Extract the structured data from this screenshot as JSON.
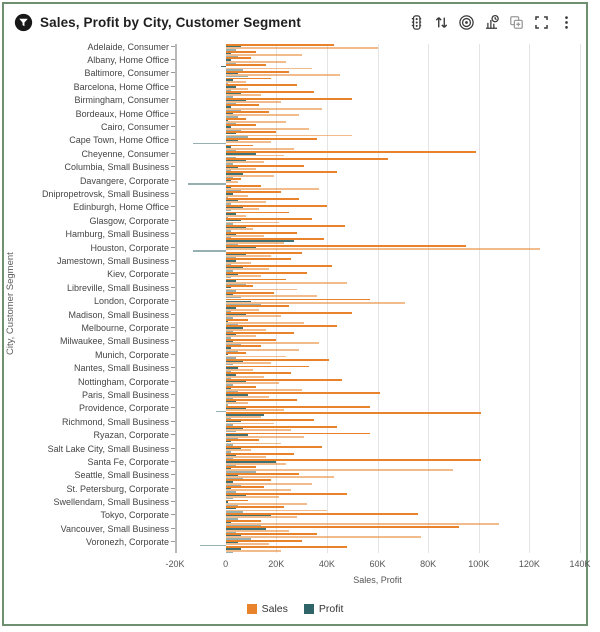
{
  "header": {
    "title": "Sales, Profit by City, Customer Segment",
    "logo_icon": "filter-badge-icon"
  },
  "toolbar": {
    "buttons": [
      {
        "name": "conditional-format",
        "icon": "traffic-light-icon"
      },
      {
        "name": "sort",
        "icon": "sort-arrows-icon"
      },
      {
        "name": "drill",
        "icon": "target-icon"
      },
      {
        "name": "insights",
        "icon": "chart-clock-icon"
      },
      {
        "name": "duplicate",
        "icon": "duplicate-plus-icon"
      },
      {
        "name": "maximize",
        "icon": "expand-icon"
      },
      {
        "name": "more-options",
        "icon": "kebab-menu-icon"
      }
    ]
  },
  "colors": {
    "sales": "#E8832C",
    "profit": "#2F6468",
    "border_green": "#6E9070",
    "grid": "#E4E4E4",
    "axis": "#B9B9B9",
    "text": "#454545"
  },
  "chart_data": {
    "type": "bar",
    "orientation": "horizontal",
    "title": "Sales, Profit by City, Customer Segment",
    "xlabel": "Sales, Profit",
    "ylabel": "City, Customer Segment",
    "grid": "vertical",
    "xlim_k": [
      -20,
      140
    ],
    "x_ticks": [
      "-20K",
      "0",
      "20K",
      "40K",
      "60K",
      "80K",
      "100K",
      "120K",
      "140K"
    ],
    "x_tick_values_k": [
      -20,
      0,
      20,
      40,
      60,
      80,
      100,
      120,
      140
    ],
    "series": [
      "Sales",
      "Profit"
    ],
    "value_unit": "thousands",
    "legend": {
      "position": "bottom",
      "items": [
        {
          "label": "Sales",
          "color": "#E8832C"
        },
        {
          "label": "Profit",
          "color": "#2F6468"
        }
      ]
    },
    "labeled_row_stride": 4,
    "categories": [
      "Adelaide, Consumer",
      "Albany, Home Office",
      "Baltimore, Consumer",
      "Barcelona, Home Office",
      "Birmingham, Consumer",
      "Bordeaux, Home Office",
      "Cairo, Consumer",
      "Cape Town, Home Office",
      "Cheyenne, Consumer",
      "Columbia, Small Business",
      "Davangere, Corporate",
      "Dnipropetrovsk, Small Business",
      "Edinburgh, Home Office",
      "Glasgow, Corporate",
      "Hamburg, Small Business",
      "Houston, Corporate",
      "Jamestown, Small Business",
      "Kiev, Corporate",
      "Libreville, Small Business",
      "London, Corporate",
      "Madison, Small Business",
      "Melbourne, Corporate",
      "Milwaukee, Small Business",
      "Munich, Corporate",
      "Nantes, Small Business",
      "Nottingham, Corporate",
      "Paris, Small Business",
      "Providence, Corporate",
      "Richmond, Small Business",
      "Ryazan, Corporate",
      "Salt Lake City, Small Business",
      "Santa Fe, Corporate",
      "Seattle, Small Business",
      "St. Petersburg, Corporate",
      "Swellendam, Small Business",
      "Tokyo, Corporate",
      "Vancouver, Small Business",
      "Voronezh, Corporate"
    ],
    "rows_k": [
      [
        43,
        6
      ],
      [
        60,
        4
      ],
      [
        12,
        2
      ],
      [
        30,
        5
      ],
      [
        10,
        2
      ],
      [
        24,
        4
      ],
      [
        16,
        -2
      ],
      [
        34,
        7
      ],
      [
        25,
        5
      ],
      [
        45,
        9
      ],
      [
        18,
        3
      ],
      [
        8,
        1
      ],
      [
        28,
        4
      ],
      [
        9,
        2
      ],
      [
        35,
        6
      ],
      [
        14,
        3
      ],
      [
        50,
        8
      ],
      [
        22,
        4
      ],
      [
        13,
        2
      ],
      [
        38,
        6
      ],
      [
        17,
        3
      ],
      [
        29,
        5
      ],
      [
        8,
        1
      ],
      [
        24,
        4
      ],
      [
        12,
        2
      ],
      [
        33,
        6
      ],
      [
        20,
        4
      ],
      [
        50,
        9
      ],
      [
        36,
        5
      ],
      [
        18,
        -13
      ],
      [
        11,
        2
      ],
      [
        27,
        4
      ],
      [
        99,
        12
      ],
      [
        23,
        4
      ],
      [
        64,
        8
      ],
      [
        15,
        3
      ],
      [
        31,
        5
      ],
      [
        12,
        2
      ],
      [
        44,
        7
      ],
      [
        19,
        3
      ],
      [
        6,
        2
      ],
      [
        5,
        -15
      ],
      [
        14,
        2
      ],
      [
        37,
        6
      ],
      [
        22,
        3
      ],
      [
        9,
        1
      ],
      [
        29,
        5
      ],
      [
        16,
        2
      ],
      [
        40,
        7
      ],
      [
        13,
        2
      ],
      [
        25,
        4
      ],
      [
        8,
        1
      ],
      [
        34,
        6
      ],
      [
        21,
        3
      ],
      [
        47,
        8
      ],
      [
        11,
        2
      ],
      [
        28,
        4
      ],
      [
        15,
        2
      ],
      [
        39,
        27
      ],
      [
        23,
        5
      ],
      [
        95,
        12
      ],
      [
        124,
        -13
      ],
      [
        30,
        8
      ],
      [
        18,
        4
      ],
      [
        26,
        4
      ],
      [
        10,
        2
      ],
      [
        42,
        7
      ],
      [
        17,
        3
      ],
      [
        32,
        5
      ],
      [
        14,
        2
      ],
      [
        24,
        4
      ],
      [
        48,
        8
      ],
      [
        11,
        2
      ],
      [
        28,
        4
      ],
      [
        19,
        3
      ],
      [
        36,
        6
      ],
      [
        57,
        10
      ],
      [
        71,
        14
      ],
      [
        25,
        4
      ],
      [
        13,
        2
      ],
      [
        50,
        8
      ],
      [
        22,
        3
      ],
      [
        9,
        1
      ],
      [
        31,
        5
      ],
      [
        44,
        7
      ],
      [
        16,
        3
      ],
      [
        27,
        4
      ],
      [
        12,
        2
      ],
      [
        20,
        3
      ],
      [
        37,
        6
      ],
      [
        14,
        2
      ],
      [
        29,
        5
      ],
      [
        8,
        1
      ],
      [
        24,
        4
      ],
      [
        41,
        7
      ],
      [
        18,
        3
      ],
      [
        33,
        5
      ],
      [
        11,
        2
      ],
      [
        26,
        4
      ],
      [
        15,
        2
      ],
      [
        46,
        8
      ],
      [
        21,
        3
      ],
      [
        12,
        2
      ],
      [
        30,
        5
      ],
      [
        61,
        9
      ],
      [
        17,
        3
      ],
      [
        28,
        4
      ],
      [
        9,
        1
      ],
      [
        57,
        8
      ],
      [
        23,
        -4
      ],
      [
        101,
        15
      ],
      [
        14,
        2
      ],
      [
        35,
        6
      ],
      [
        19,
        3
      ],
      [
        44,
        7
      ],
      [
        26,
        4
      ],
      [
        57,
        9
      ],
      [
        31,
        5
      ],
      [
        13,
        2
      ],
      [
        22,
        3
      ],
      [
        38,
        6
      ],
      [
        10,
        2
      ],
      [
        27,
        4
      ],
      [
        16,
        3
      ],
      [
        101,
        20
      ],
      [
        24,
        4
      ],
      [
        12,
        2
      ],
      [
        90,
        12
      ],
      [
        29,
        5
      ],
      [
        43,
        7
      ],
      [
        18,
        3
      ],
      [
        34,
        6
      ],
      [
        15,
        2
      ],
      [
        26,
        4
      ],
      [
        48,
        8
      ],
      [
        21,
        3
      ],
      [
        9,
        1
      ],
      [
        32,
        5
      ],
      [
        23,
        4
      ],
      [
        40,
        7
      ],
      [
        76,
        18
      ],
      [
        28,
        5
      ],
      [
        14,
        2
      ],
      [
        108,
        14
      ],
      [
        92,
        16
      ],
      [
        25,
        4
      ],
      [
        36,
        6
      ],
      [
        77,
        10
      ],
      [
        30,
        5
      ],
      [
        17,
        -10
      ],
      [
        48,
        6
      ],
      [
        22,
        3
      ]
    ]
  }
}
